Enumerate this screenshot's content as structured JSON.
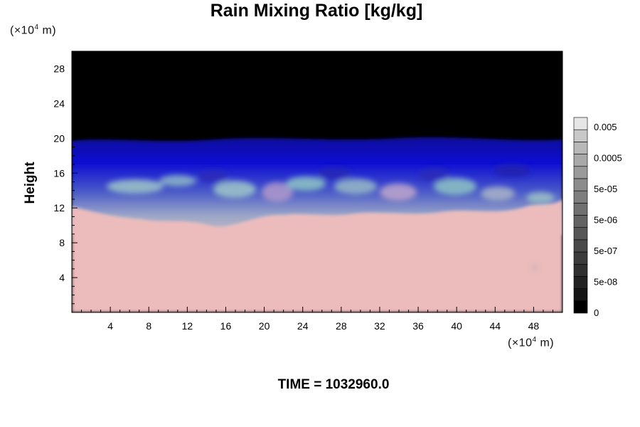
{
  "chart_data": {
    "type": "heatmap",
    "title": "Rain Mixing Ratio [kg/kg]",
    "ylabel": "Height",
    "y_unit_note": {
      "prefix": "(×10",
      "exp": "4",
      "suffix": " m)"
    },
    "x_unit_note": {
      "prefix": "(×10",
      "exp": "4",
      "suffix": " m)"
    },
    "xlim": [
      0,
      51
    ],
    "ylim": [
      0,
      30
    ],
    "x_ticks": [
      4,
      8,
      12,
      16,
      20,
      24,
      28,
      32,
      36,
      40,
      44,
      48
    ],
    "y_ticks": [
      4,
      8,
      12,
      16,
      20,
      24,
      28
    ],
    "colorbar": {
      "labels": [
        "0.005",
        "0.0005",
        "5e-05",
        "5e-06",
        "5e-07",
        "5e-08",
        "0"
      ],
      "levels": 16,
      "colors": [
        "#000000",
        "#151515",
        "#222222",
        "#303030",
        "#3c3c3c",
        "#494949",
        "#565656",
        "#636363",
        "#707070",
        "#7e7e7e",
        "#8c8c8c",
        "#9a9a9a",
        "#a9a9a9",
        "#b8b8b8",
        "#c8c8c8",
        "#e6e6e6"
      ]
    },
    "colors": {
      "upper_region": "#000000",
      "high_band": "#0a0ac8",
      "mid_band": "#5a6ac8",
      "mixing_band": "#b6b6c8",
      "lower_region": "#ecbcbc"
    },
    "annotation_time": "TIME = 1032960.0"
  }
}
